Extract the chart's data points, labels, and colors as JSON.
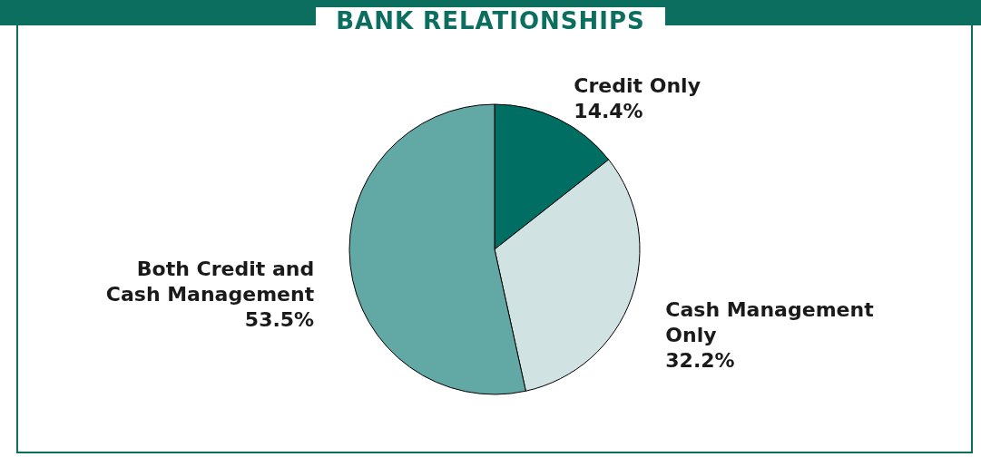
{
  "chart_data": {
    "type": "pie",
    "title": "BANK RELATIONSHIPS",
    "categories": [
      "Credit Only",
      "Cash Management Only",
      "Both Credit and Cash Management"
    ],
    "values": [
      14.4,
      32.2,
      53.5
    ],
    "value_labels": [
      "14.4%",
      "32.2%",
      "53.5%"
    ],
    "colors": [
      "#006e63",
      "#d0e3e2",
      "#62a8a4"
    ]
  }
}
